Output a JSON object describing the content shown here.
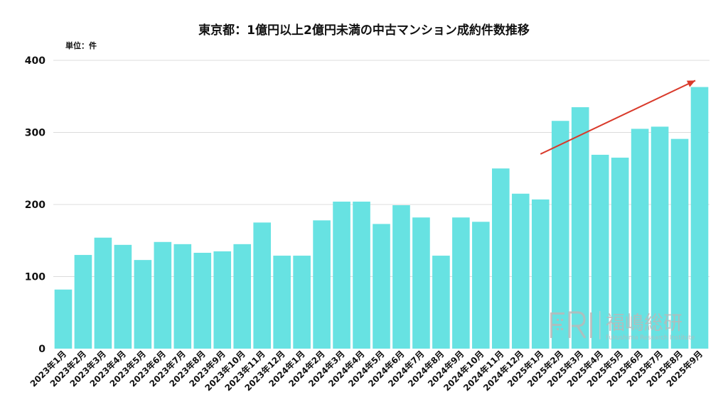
{
  "chart_data": {
    "type": "bar",
    "title": "東京都：1億円以上2億円未満の中古マンション成約件数推移",
    "unit_label": "単位：件",
    "xlabel": "",
    "ylabel": "",
    "ylim": [
      0,
      400
    ],
    "yticks": [
      0,
      100,
      200,
      300,
      400
    ],
    "grid": true,
    "colors": {
      "bar": "#67e2e2",
      "arrow": "#d93a2b"
    },
    "categories": [
      "2023年1月",
      "2023年2月",
      "2023年3月",
      "2023年4月",
      "2023年5月",
      "2023年6月",
      "2023年7月",
      "2023年8月",
      "2023年9月",
      "2023年10月",
      "2023年11月",
      "2023年12月",
      "2024年1月",
      "2024年2月",
      "2024年3月",
      "2024年4月",
      "2024年5月",
      "2024年6月",
      "2024年7月",
      "2024年8月",
      "2024年9月",
      "2024年10月",
      "2024年11月",
      "2024年12月",
      "2025年1月",
      "2025年2月",
      "2025年3月",
      "2025年4月",
      "2025年5月",
      "2025年6月",
      "2025年7月",
      "2025年8月",
      "2025年9月"
    ],
    "values": [
      82,
      130,
      154,
      144,
      123,
      148,
      145,
      133,
      135,
      145,
      175,
      129,
      129,
      178,
      204,
      204,
      173,
      199,
      182,
      129,
      182,
      176,
      250,
      215,
      207,
      316,
      335,
      269,
      265,
      305,
      308,
      291,
      363
    ],
    "annotation": {
      "type": "trend-arrow",
      "from": {
        "x": "2025年1月",
        "y": 270
      },
      "to": {
        "x": "2025年9月",
        "y": 372
      }
    }
  },
  "watermark": {
    "logo": "FRI",
    "name": "福嶋総研",
    "subtitle": "Fukushima Research Institute"
  }
}
